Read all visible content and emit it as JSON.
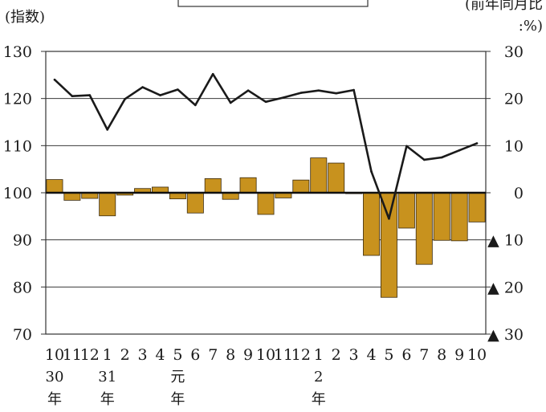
{
  "chart_data": {
    "type": "bar",
    "left_axis_label": "(指数)",
    "right_axis_label_line1": "(前年同月比",
    "right_axis_label_line2": ":%)",
    "left_ticks": [
      "130",
      "120",
      "110",
      "100",
      "90",
      "80",
      "70"
    ],
    "right_ticks": [
      "30",
      "20",
      "10",
      "0",
      "▲ 10",
      "▲ 20",
      "▲ 30"
    ],
    "ylim_left": [
      70,
      130
    ],
    "ylim_right": [
      -30,
      30
    ],
    "grid": true,
    "categories": [
      "10",
      "11",
      "12",
      "1",
      "2",
      "3",
      "4",
      "5",
      "6",
      "7",
      "8",
      "9",
      "10",
      "11",
      "12",
      "1",
      "2",
      "3",
      "4",
      "5",
      "6",
      "7",
      "8",
      "9",
      "10"
    ],
    "year_labels": [
      {
        "index": 0,
        "top": "30",
        "bottom": "年"
      },
      {
        "index": 3,
        "top": "31",
        "bottom": "年"
      },
      {
        "index": 7,
        "top": "元",
        "bottom": "年"
      },
      {
        "index": 15,
        "top": "2",
        "bottom": "年"
      }
    ],
    "series": [
      {
        "kind": "bar",
        "axis": "right",
        "color": "#c8921e",
        "values": [
          2.8,
          -1.6,
          -1.2,
          -4.9,
          -0.5,
          0.9,
          1.2,
          -1.3,
          -4.3,
          3.0,
          -1.4,
          3.2,
          -4.6,
          -1.1,
          2.7,
          7.4,
          6.3,
          -0.2,
          -13.3,
          -22.2,
          -7.5,
          -15.2,
          -10.1,
          -10.2,
          -6.2
        ]
      },
      {
        "kind": "line",
        "axis": "left",
        "color": "#1a1a1a",
        "values": [
          124.0,
          120.5,
          120.7,
          113.4,
          119.9,
          122.4,
          120.7,
          121.9,
          118.6,
          125.2,
          119.1,
          121.7,
          119.3,
          120.2,
          121.2,
          121.7,
          121.1,
          121.8,
          104.5,
          94.5,
          109.9,
          107.0,
          107.5,
          109.0,
          110.5
        ]
      }
    ]
  }
}
